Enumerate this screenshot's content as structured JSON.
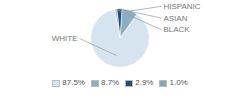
{
  "chart_data": {
    "type": "pie",
    "categories": [
      "WHITE",
      "HISPANIC",
      "ASIAN",
      "BLACK"
    ],
    "values": [
      87.5,
      8.7,
      2.9,
      1.0
    ],
    "value_labels": [
      "87.5%",
      "8.7%",
      "2.9%",
      "1.0%"
    ],
    "colors": [
      "#d6e4f0",
      "#8aafc5",
      "#1f4e79",
      "#7fa8c0"
    ],
    "legend": "bottom"
  }
}
